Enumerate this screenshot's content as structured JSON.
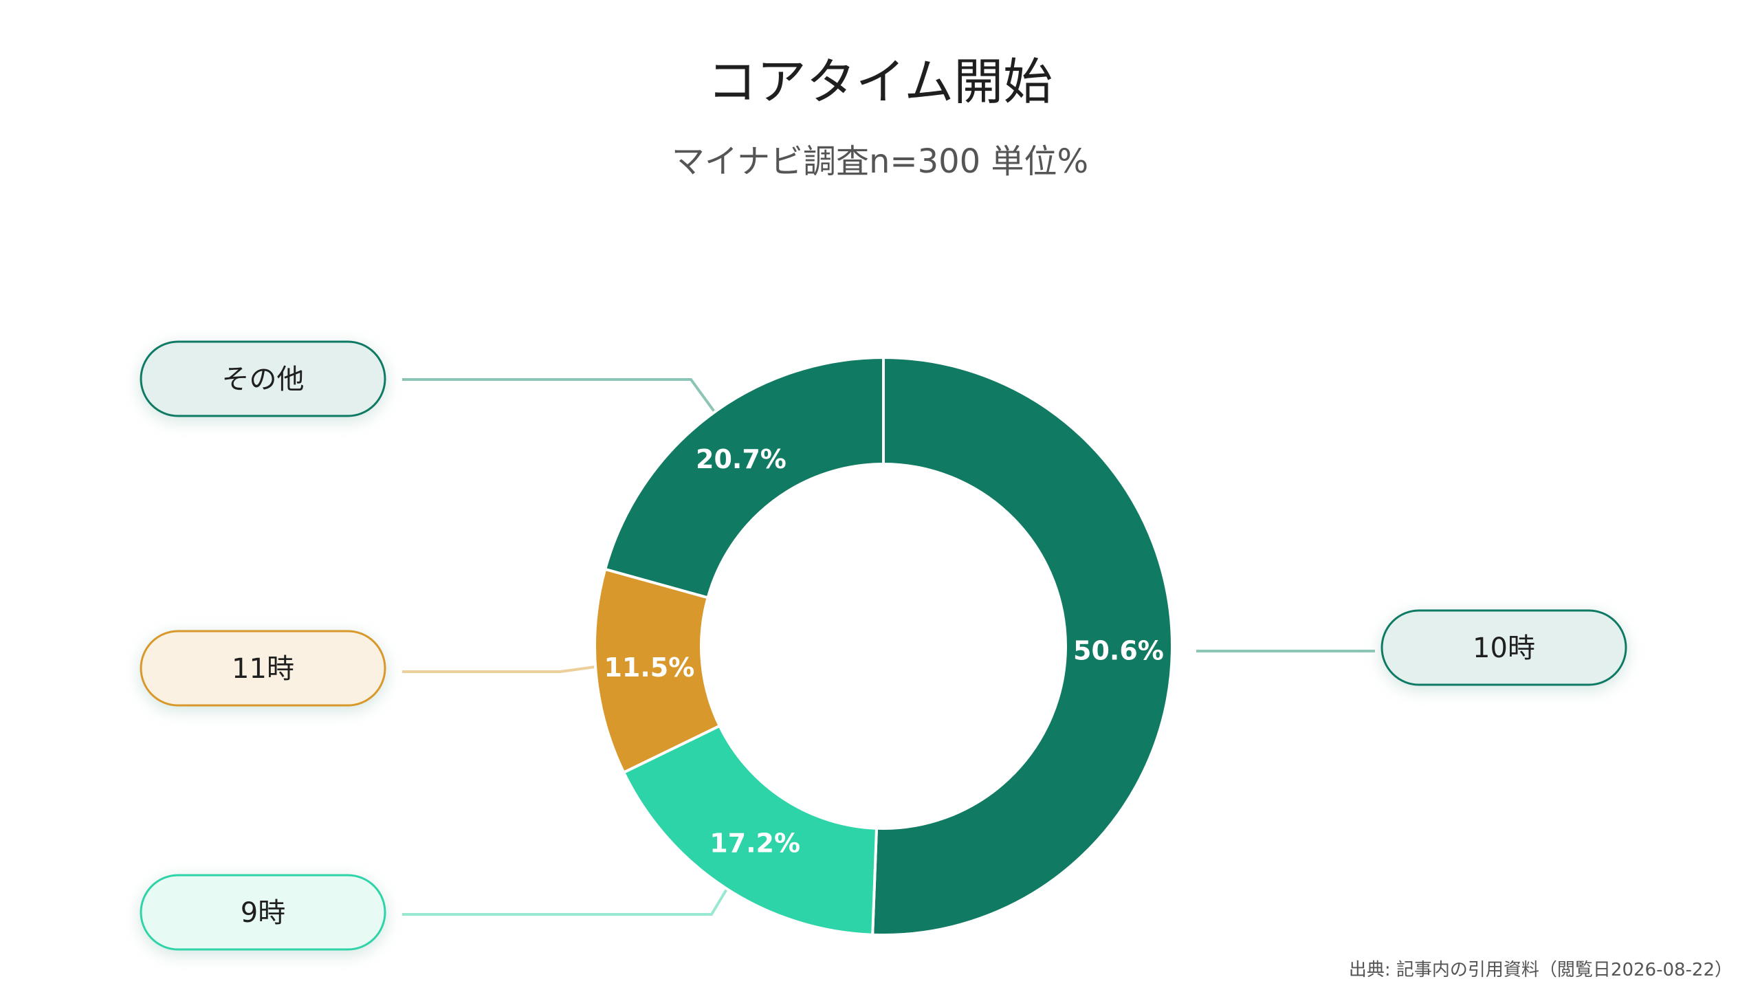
{
  "chart_data": {
    "type": "pie",
    "title": "コアタイム開始",
    "subtitle": "マイナビ調査n=300 単位%",
    "slices": [
      {
        "label": "10時",
        "value": 50.6,
        "value_label": "50.6%",
        "color": "#107a63",
        "pill_bg": "#e4f0ed",
        "pill_border": "#107a63",
        "line_color": "#8cc4b6"
      },
      {
        "label": "9時",
        "value": 17.2,
        "value_label": "17.2%",
        "color": "#2dd4a7",
        "pill_bg": "#e7faf3",
        "pill_border": "#2dd4a7",
        "line_color": "#99e8d1"
      },
      {
        "label": "11時",
        "value": 11.5,
        "value_label": "11.5%",
        "color": "#d8982c",
        "pill_bg": "#fbf1e3",
        "pill_border": "#d8982c",
        "line_color": "#eccf9a"
      },
      {
        "label": "その他",
        "value": 20.7,
        "value_label": "20.7%",
        "color": "#107a63",
        "pill_bg": "#e4f0ed",
        "pill_border": "#107a63",
        "line_color": "#8cc4b6"
      }
    ],
    "donut": true,
    "legend": "callout-labels"
  },
  "source": "出典: 記事内の引用資料（閲覧日2026-08-22）"
}
